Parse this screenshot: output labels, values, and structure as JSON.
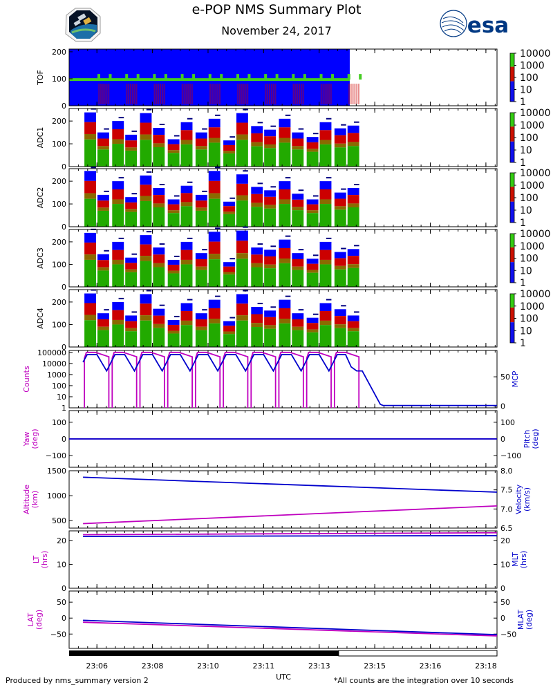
{
  "header": {
    "title": "e-POP NMS Summary Plot",
    "date": "November 24, 2017",
    "esa_logo_text": "esa"
  },
  "footer": {
    "left_note": "Produced by nms_summary version 2",
    "right_note": "*All counts are the integration over 10 seconds",
    "x_axis_label": "UTC"
  },
  "colors": {
    "left_axis": "#bf00bf",
    "right_axis": "#0000cc",
    "spectrogram_bg": "#0000ff",
    "spectrogram_mid": "#22aa00",
    "spectrogram_high": "#cc0000"
  },
  "icons": [
    "satellite-mission-patch-icon",
    "esa-logo-icon"
  ],
  "chart_data": {
    "type": "multi-panel time series",
    "x_axis": {
      "label": "UTC",
      "range": [
        "23:05:30",
        "23:18:25"
      ],
      "tick_labels": [
        "23:06",
        "23:08",
        "23:10",
        "23:11",
        "23:13",
        "23:15",
        "23:16",
        "23:18"
      ],
      "tick_times_min": [
        0.5,
        2.5,
        4.5,
        6.5,
        8.5,
        10.5,
        12.5,
        14.5
      ],
      "data_coverage_end_min": 9.2
    },
    "spectrograms": {
      "colorbar_labels": [
        "10000",
        "1000",
        "100",
        "10",
        "1"
      ],
      "data_end_min": 9.6,
      "panels": [
        {
          "label": "TOF",
          "yrange": [
            0,
            210
          ],
          "yticks": [
            "0",
            "100",
            "200"
          ],
          "tof_line": 97
        },
        {
          "label": "ADC1",
          "yrange": [
            0,
            255
          ],
          "yticks": [
            "0",
            "100",
            "200"
          ],
          "peaks": [
            238,
            150,
            200,
            140,
            235,
            170,
            120,
            195,
            150,
            210,
            115,
            235,
            178,
            162,
            210,
            150,
            130,
            195,
            168,
            180
          ]
        },
        {
          "label": "ADC2",
          "yrange": [
            0,
            255
          ],
          "yticks": [
            "0",
            "100",
            "200"
          ],
          "peaks": [
            245,
            140,
            200,
            130,
            225,
            170,
            120,
            180,
            140,
            245,
            110,
            230,
            175,
            160,
            200,
            145,
            120,
            200,
            150,
            170
          ]
        },
        {
          "label": "ADC3",
          "yrange": [
            0,
            255
          ],
          "yticks": [
            "0",
            "100",
            "200"
          ],
          "peaks": [
            240,
            145,
            200,
            130,
            230,
            175,
            120,
            200,
            150,
            245,
            110,
            250,
            175,
            165,
            210,
            150,
            125,
            200,
            155,
            168
          ]
        },
        {
          "label": "ADC4",
          "yrange": [
            0,
            255
          ],
          "yticks": [
            "0",
            "100",
            "200"
          ],
          "peaks": [
            238,
            150,
            200,
            140,
            235,
            170,
            120,
            195,
            150,
            210,
            115,
            235,
            178,
            162,
            210,
            150,
            130,
            195,
            168,
            140
          ]
        }
      ]
    },
    "counts_mcp": {
      "left_label": "Counts",
      "right_label": "MCP",
      "left_ticks": [
        "100000",
        "10000",
        "1000",
        "100",
        "10",
        "1"
      ],
      "right_ticks": [
        "50",
        "0"
      ],
      "left_log_range": [
        1,
        100000
      ],
      "right_range": [
        -3,
        95
      ],
      "counts_cycle_starts_min": [
        0.0,
        1.0,
        2.0,
        3.0,
        4.0,
        5.0,
        6.0,
        7.0,
        8.0,
        9.0
      ],
      "counts_high": 100000,
      "counts_end_min": 9.6,
      "mcp_points": [
        [
          0,
          75
        ],
        [
          0.15,
          88
        ],
        [
          0.5,
          88
        ],
        [
          0.85,
          60
        ],
        [
          1.15,
          88
        ],
        [
          1.5,
          88
        ],
        [
          1.85,
          60
        ],
        [
          2.15,
          88
        ],
        [
          2.5,
          88
        ],
        [
          2.85,
          60
        ],
        [
          3.15,
          88
        ],
        [
          3.5,
          88
        ],
        [
          3.85,
          60
        ],
        [
          4.15,
          88
        ],
        [
          4.5,
          88
        ],
        [
          4.85,
          60
        ],
        [
          5.15,
          88
        ],
        [
          5.5,
          88
        ],
        [
          5.85,
          60
        ],
        [
          6.15,
          88
        ],
        [
          6.5,
          88
        ],
        [
          6.85,
          60
        ],
        [
          7.15,
          88
        ],
        [
          7.5,
          88
        ],
        [
          7.85,
          60
        ],
        [
          8.15,
          88
        ],
        [
          8.5,
          88
        ],
        [
          8.85,
          60
        ],
        [
          9.15,
          88
        ],
        [
          9.45,
          88
        ],
        [
          9.65,
          67
        ],
        [
          9.85,
          60
        ],
        [
          10.05,
          60
        ],
        [
          10.7,
          3
        ],
        [
          10.8,
          1
        ],
        [
          14.9,
          1
        ]
      ]
    },
    "yaw_pitch": {
      "left_label": "Yaw (deg)",
      "right_label": "Pitch (deg)",
      "left_ticks": [
        "100",
        "0",
        "−100"
      ],
      "right_ticks": [
        "100",
        "0",
        "−100"
      ],
      "range": [
        -170,
        170
      ],
      "yaw": 0,
      "pitch": 0
    },
    "altitude_velocity": {
      "left_label": "Altitude (km)",
      "right_label": "Velocity (km/s)",
      "left_ticks": [
        "1500",
        "1000",
        "500"
      ],
      "right_ticks": [
        "8.0",
        "7.5",
        "7.0",
        "6.5"
      ],
      "left_range": [
        350,
        1500
      ],
      "right_range": [
        6.5,
        8.0
      ],
      "altitude": [
        [
          0,
          440
        ],
        [
          14.9,
          795
        ]
      ],
      "velocity": [
        [
          0,
          7.83
        ],
        [
          14.9,
          7.44
        ]
      ]
    },
    "lt_mlt": {
      "left_label": "LT (hrs)",
      "right_label": "MLT (hrs)",
      "left_ticks": [
        "20",
        "10",
        "0"
      ],
      "right_ticks": [
        "20",
        "10",
        "0"
      ],
      "range": [
        0,
        24
      ],
      "lt": [
        [
          0,
          22.4
        ],
        [
          14.9,
          23.2
        ]
      ],
      "mlt": [
        [
          0,
          21.7
        ],
        [
          14.9,
          22.0
        ]
      ]
    },
    "lat_mlat": {
      "left_label": "LAT (deg)",
      "right_label": "MLAT (deg)",
      "left_ticks": [
        "50",
        "0",
        "−50"
      ],
      "right_ticks": [
        "50",
        "0",
        "−50"
      ],
      "range": [
        -95,
        85
      ],
      "lat": [
        [
          0,
          -13
        ],
        [
          14.9,
          -56
        ]
      ],
      "mlat": [
        [
          0,
          -7
        ],
        [
          14.9,
          -52
        ]
      ]
    }
  }
}
